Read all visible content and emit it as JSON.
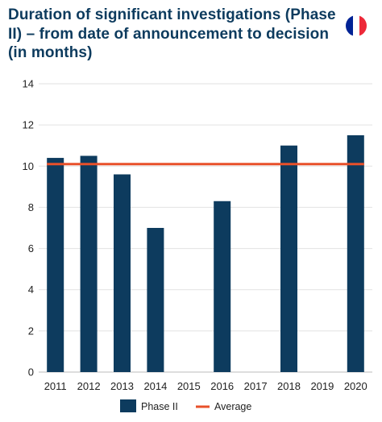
{
  "title": "Duration of significant investigations (Phase II) – from date of announcement to decision (in months)",
  "flag": {
    "icon": "france-flag-icon",
    "colors": [
      "#002395",
      "#ffffff",
      "#ed2939"
    ]
  },
  "chart_data": {
    "type": "bar",
    "title": "Duration of significant investigations (Phase II) – from date of announcement to decision (in months)",
    "categories": [
      "2011",
      "2012",
      "2013",
      "2014",
      "2015",
      "2016",
      "2017",
      "2018",
      "2019",
      "2020"
    ],
    "series": [
      {
        "name": "Phase II",
        "type": "bar",
        "color": "#0d3b5e",
        "values": [
          10.4,
          10.5,
          9.6,
          7.0,
          null,
          8.3,
          null,
          11.0,
          null,
          11.5
        ]
      },
      {
        "name": "Average",
        "type": "line",
        "color": "#e8502a",
        "value": 10.1
      }
    ],
    "yticks": [
      0,
      2,
      4,
      6,
      8,
      10,
      12,
      14
    ],
    "ylim": [
      0,
      14
    ],
    "xlabel": "",
    "ylabel": "",
    "grid": true,
    "legend": "bottom-center"
  }
}
